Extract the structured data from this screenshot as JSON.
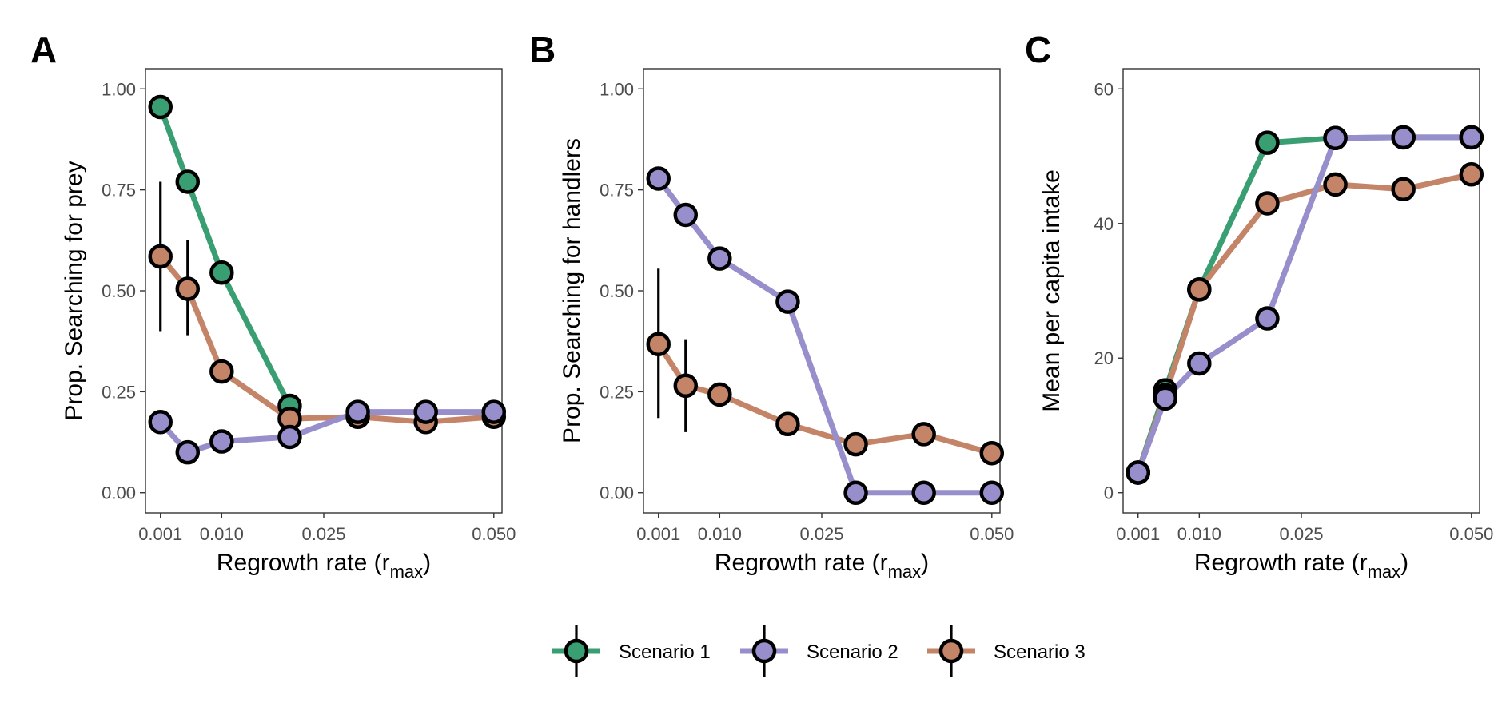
{
  "colors": {
    "Scenario 1": "#3a9e73",
    "Scenario 2": "#978fcb",
    "Scenario 3": "#c48468"
  },
  "legend": {
    "items": [
      "Scenario 1",
      "Scenario 2",
      "Scenario 3"
    ]
  },
  "chart_data": [
    {
      "type": "line",
      "panel": "A",
      "xlabel": "Regrowth rate (r",
      "xlabel_sub": "max",
      "xlabel_close": ")",
      "ylabel": "Prop. Searching for prey",
      "xlim": [
        -0.0012,
        0.0512
      ],
      "ylim": [
        -0.05,
        1.05
      ],
      "xticks": [
        0.001,
        0.01,
        0.025,
        0.05
      ],
      "xtick_labels": [
        "0.001",
        "0.010",
        "0.025",
        "0.050"
      ],
      "yticks": [
        0,
        0.25,
        0.5,
        0.75,
        1.0
      ],
      "ytick_labels": [
        "0.00",
        "0.25",
        "0.50",
        "0.75",
        "1.00"
      ],
      "series": [
        {
          "name": "Scenario 1",
          "x": [
            0.001,
            0.005,
            0.01,
            0.02
          ],
          "y": [
            0.955,
            0.77,
            0.545,
            0.215
          ]
        },
        {
          "name": "Scenario 2",
          "x": [
            0.001,
            0.005,
            0.01,
            0.02,
            0.03,
            0.04,
            0.05
          ],
          "y": [
            0.175,
            0.1,
            0.127,
            0.138,
            0.2,
            0.2,
            0.2
          ]
        },
        {
          "name": "Scenario 3",
          "x": [
            0.001,
            0.005,
            0.01,
            0.02,
            0.03,
            0.04,
            0.05
          ],
          "y": [
            0.585,
            0.505,
            0.3,
            0.183,
            0.188,
            0.175,
            0.188
          ],
          "err": [
            [
              0.4,
              0.77
            ],
            [
              0.39,
              0.625
            ],
            null,
            null,
            null,
            null,
            null
          ]
        }
      ]
    },
    {
      "type": "line",
      "panel": "B",
      "xlabel": "Regrowth rate (r",
      "xlabel_sub": "max",
      "xlabel_close": ")",
      "ylabel": "Prop. Searching for handlers",
      "xlim": [
        -0.0012,
        0.0512
      ],
      "ylim": [
        -0.05,
        1.05
      ],
      "xticks": [
        0.001,
        0.01,
        0.025,
        0.05
      ],
      "xtick_labels": [
        "0.001",
        "0.010",
        "0.025",
        "0.050"
      ],
      "yticks": [
        0,
        0.25,
        0.5,
        0.75,
        1.0
      ],
      "ytick_labels": [
        "0.00",
        "0.25",
        "0.50",
        "0.75",
        "1.00"
      ],
      "series": [
        {
          "name": "Scenario 2",
          "x": [
            0.001,
            0.005,
            0.01,
            0.02,
            0.03,
            0.04,
            0.05
          ],
          "y": [
            0.778,
            0.688,
            0.58,
            0.473,
            0.0,
            0.0,
            0.0
          ]
        },
        {
          "name": "Scenario 3",
          "x": [
            0.001,
            0.005,
            0.01,
            0.02,
            0.03,
            0.04,
            0.05
          ],
          "y": [
            0.368,
            0.265,
            0.243,
            0.17,
            0.12,
            0.145,
            0.098
          ],
          "err": [
            [
              0.185,
              0.555
            ],
            [
              0.15,
              0.38
            ],
            null,
            null,
            null,
            null,
            null
          ]
        }
      ]
    },
    {
      "type": "line",
      "panel": "C",
      "xlabel": "Regrowth rate (r",
      "xlabel_sub": "max",
      "xlabel_close": ")",
      "ylabel": "Mean per capita intake",
      "xlim": [
        -0.0012,
        0.0512
      ],
      "ylim": [
        -3,
        63
      ],
      "xticks": [
        0.001,
        0.01,
        0.025,
        0.05
      ],
      "xtick_labels": [
        "0.001",
        "0.010",
        "0.025",
        "0.050"
      ],
      "yticks": [
        0,
        20,
        40,
        60
      ],
      "ytick_labels": [
        "0",
        "20",
        "40",
        "60"
      ],
      "series": [
        {
          "name": "Scenario 1",
          "x": [
            0.001,
            0.005,
            0.01,
            0.02,
            0.03,
            0.04,
            0.05
          ],
          "y": [
            3.0,
            15.2,
            30.2,
            52.0,
            52.7,
            52.8,
            52.8
          ]
        },
        {
          "name": "Scenario 3",
          "x": [
            0.001,
            0.005,
            0.01,
            0.02,
            0.03,
            0.04,
            0.05
          ],
          "y": [
            3.0,
            14.5,
            30.2,
            43.0,
            45.8,
            45.1,
            47.3
          ]
        },
        {
          "name": "Scenario 2",
          "x": [
            0.001,
            0.005,
            0.01,
            0.02,
            0.03,
            0.04,
            0.05
          ],
          "y": [
            3.0,
            14.0,
            19.2,
            25.9,
            52.7,
            52.8,
            52.8
          ]
        }
      ]
    }
  ]
}
